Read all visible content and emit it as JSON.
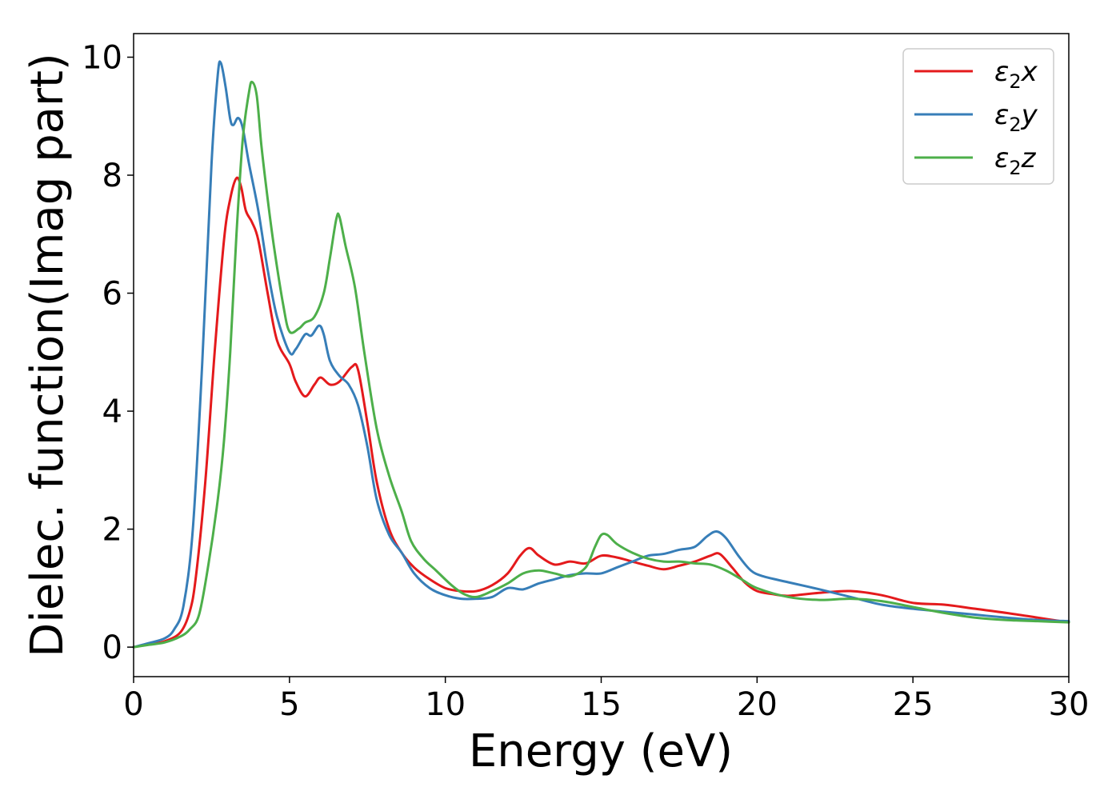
{
  "chart_data": {
    "type": "line",
    "title": "",
    "xlabel": "Energy (eV)",
    "ylabel": "Dielec. function(Imag part)",
    "xlim": [
      0,
      30
    ],
    "ylim": [
      -0.5,
      10.4
    ],
    "xticks": [
      0,
      5,
      10,
      15,
      20,
      25,
      30
    ],
    "yticks": [
      0,
      2,
      4,
      6,
      8,
      10
    ],
    "xtick_labels": [
      "0",
      "5",
      "10",
      "15",
      "20",
      "25",
      "30"
    ],
    "ytick_labels": [
      "0",
      "2",
      "4",
      "6",
      "8",
      "10"
    ],
    "grid": false,
    "legend_position": "top-right",
    "series": [
      {
        "name": "ε₂x",
        "legend": {
          "symbol": "ε",
          "sub": "2",
          "suffix": "x"
        },
        "color": "#e41a1c",
        "points": [
          [
            0,
            0
          ],
          [
            0.5,
            0.05
          ],
          [
            1.0,
            0.1
          ],
          [
            1.5,
            0.25
          ],
          [
            1.8,
            0.6
          ],
          [
            2.0,
            1.2
          ],
          [
            2.3,
            2.8
          ],
          [
            2.6,
            5.0
          ],
          [
            2.9,
            6.9
          ],
          [
            3.1,
            7.6
          ],
          [
            3.3,
            7.95
          ],
          [
            3.45,
            7.8
          ],
          [
            3.6,
            7.4
          ],
          [
            3.8,
            7.2
          ],
          [
            4.0,
            6.9
          ],
          [
            4.3,
            6.0
          ],
          [
            4.6,
            5.2
          ],
          [
            5.0,
            4.8
          ],
          [
            5.2,
            4.5
          ],
          [
            5.5,
            4.25
          ],
          [
            5.8,
            4.45
          ],
          [
            6.0,
            4.57
          ],
          [
            6.3,
            4.45
          ],
          [
            6.6,
            4.5
          ],
          [
            7.0,
            4.75
          ],
          [
            7.2,
            4.7
          ],
          [
            7.5,
            3.8
          ],
          [
            7.8,
            2.8
          ],
          [
            8.2,
            2.0
          ],
          [
            8.6,
            1.6
          ],
          [
            9.0,
            1.35
          ],
          [
            9.5,
            1.15
          ],
          [
            10.0,
            1.0
          ],
          [
            10.5,
            0.95
          ],
          [
            11.0,
            0.95
          ],
          [
            11.5,
            1.05
          ],
          [
            12.0,
            1.25
          ],
          [
            12.4,
            1.55
          ],
          [
            12.7,
            1.68
          ],
          [
            13.0,
            1.55
          ],
          [
            13.5,
            1.4
          ],
          [
            14.0,
            1.45
          ],
          [
            14.5,
            1.42
          ],
          [
            15.0,
            1.55
          ],
          [
            15.5,
            1.52
          ],
          [
            16.0,
            1.45
          ],
          [
            16.5,
            1.38
          ],
          [
            17.0,
            1.32
          ],
          [
            17.5,
            1.38
          ],
          [
            18.0,
            1.45
          ],
          [
            18.5,
            1.55
          ],
          [
            18.8,
            1.58
          ],
          [
            19.2,
            1.35
          ],
          [
            19.6,
            1.1
          ],
          [
            20.0,
            0.95
          ],
          [
            20.5,
            0.9
          ],
          [
            21.0,
            0.87
          ],
          [
            22.0,
            0.92
          ],
          [
            23.0,
            0.95
          ],
          [
            24.0,
            0.88
          ],
          [
            25.0,
            0.75
          ],
          [
            26.0,
            0.72
          ],
          [
            27.0,
            0.65
          ],
          [
            28.0,
            0.58
          ],
          [
            29.0,
            0.5
          ],
          [
            30.0,
            0.42
          ]
        ]
      },
      {
        "name": "ε₂y",
        "legend": {
          "symbol": "ε",
          "sub": "2",
          "suffix": "y"
        },
        "color": "#377eb8",
        "points": [
          [
            0,
            0
          ],
          [
            0.5,
            0.07
          ],
          [
            1.0,
            0.15
          ],
          [
            1.3,
            0.3
          ],
          [
            1.6,
            0.7
          ],
          [
            1.9,
            2.0
          ],
          [
            2.2,
            4.8
          ],
          [
            2.5,
            8.2
          ],
          [
            2.7,
            9.7
          ],
          [
            2.8,
            9.9
          ],
          [
            2.95,
            9.5
          ],
          [
            3.1,
            8.95
          ],
          [
            3.2,
            8.85
          ],
          [
            3.35,
            8.97
          ],
          [
            3.5,
            8.8
          ],
          [
            3.7,
            8.2
          ],
          [
            4.0,
            7.4
          ],
          [
            4.3,
            6.4
          ],
          [
            4.6,
            5.6
          ],
          [
            5.0,
            5.0
          ],
          [
            5.2,
            5.05
          ],
          [
            5.5,
            5.3
          ],
          [
            5.7,
            5.28
          ],
          [
            5.95,
            5.45
          ],
          [
            6.1,
            5.3
          ],
          [
            6.3,
            4.85
          ],
          [
            6.6,
            4.6
          ],
          [
            6.9,
            4.45
          ],
          [
            7.2,
            4.1
          ],
          [
            7.5,
            3.4
          ],
          [
            7.8,
            2.5
          ],
          [
            8.2,
            1.9
          ],
          [
            8.6,
            1.6
          ],
          [
            9.0,
            1.25
          ],
          [
            9.5,
            1.0
          ],
          [
            10.0,
            0.88
          ],
          [
            10.5,
            0.82
          ],
          [
            11.0,
            0.82
          ],
          [
            11.5,
            0.85
          ],
          [
            12.0,
            1.0
          ],
          [
            12.5,
            0.98
          ],
          [
            13.0,
            1.08
          ],
          [
            13.5,
            1.15
          ],
          [
            14.0,
            1.22
          ],
          [
            14.5,
            1.25
          ],
          [
            15.0,
            1.25
          ],
          [
            15.5,
            1.35
          ],
          [
            16.0,
            1.45
          ],
          [
            16.5,
            1.55
          ],
          [
            17.0,
            1.58
          ],
          [
            17.5,
            1.65
          ],
          [
            18.0,
            1.7
          ],
          [
            18.4,
            1.88
          ],
          [
            18.7,
            1.96
          ],
          [
            19.0,
            1.85
          ],
          [
            19.4,
            1.55
          ],
          [
            19.8,
            1.3
          ],
          [
            20.2,
            1.2
          ],
          [
            21.0,
            1.1
          ],
          [
            22.0,
            0.98
          ],
          [
            23.0,
            0.85
          ],
          [
            24.0,
            0.72
          ],
          [
            25.0,
            0.65
          ],
          [
            26.0,
            0.6
          ],
          [
            27.0,
            0.55
          ],
          [
            28.0,
            0.5
          ],
          [
            29.0,
            0.46
          ],
          [
            30.0,
            0.44
          ]
        ]
      },
      {
        "name": "ε₂z",
        "legend": {
          "symbol": "ε",
          "sub": "2",
          "suffix": "z"
        },
        "color": "#4daf4a",
        "points": [
          [
            0,
            0
          ],
          [
            0.5,
            0.04
          ],
          [
            1.0,
            0.08
          ],
          [
            1.5,
            0.18
          ],
          [
            1.8,
            0.3
          ],
          [
            2.1,
            0.55
          ],
          [
            2.4,
            1.4
          ],
          [
            2.7,
            2.5
          ],
          [
            2.9,
            3.5
          ],
          [
            3.1,
            5.0
          ],
          [
            3.3,
            7.0
          ],
          [
            3.5,
            8.6
          ],
          [
            3.7,
            9.4
          ],
          [
            3.8,
            9.58
          ],
          [
            3.95,
            9.35
          ],
          [
            4.1,
            8.5
          ],
          [
            4.3,
            7.6
          ],
          [
            4.5,
            6.8
          ],
          [
            4.8,
            5.8
          ],
          [
            5.0,
            5.35
          ],
          [
            5.3,
            5.4
          ],
          [
            5.5,
            5.5
          ],
          [
            5.8,
            5.6
          ],
          [
            6.1,
            6.0
          ],
          [
            6.3,
            6.6
          ],
          [
            6.5,
            7.25
          ],
          [
            6.6,
            7.3
          ],
          [
            6.8,
            6.8
          ],
          [
            7.1,
            6.1
          ],
          [
            7.4,
            5.0
          ],
          [
            7.8,
            3.7
          ],
          [
            8.2,
            2.9
          ],
          [
            8.6,
            2.3
          ],
          [
            8.9,
            1.8
          ],
          [
            9.3,
            1.5
          ],
          [
            9.7,
            1.3
          ],
          [
            10.2,
            1.05
          ],
          [
            10.6,
            0.9
          ],
          [
            11.0,
            0.85
          ],
          [
            11.5,
            0.95
          ],
          [
            12.0,
            1.08
          ],
          [
            12.5,
            1.25
          ],
          [
            13.0,
            1.3
          ],
          [
            13.5,
            1.25
          ],
          [
            14.0,
            1.2
          ],
          [
            14.5,
            1.35
          ],
          [
            14.8,
            1.7
          ],
          [
            15.0,
            1.9
          ],
          [
            15.2,
            1.9
          ],
          [
            15.5,
            1.75
          ],
          [
            16.0,
            1.6
          ],
          [
            16.5,
            1.5
          ],
          [
            17.0,
            1.45
          ],
          [
            17.5,
            1.45
          ],
          [
            18.0,
            1.42
          ],
          [
            18.5,
            1.4
          ],
          [
            19.0,
            1.3
          ],
          [
            19.5,
            1.15
          ],
          [
            20.0,
            1.0
          ],
          [
            21.0,
            0.85
          ],
          [
            22.0,
            0.8
          ],
          [
            23.0,
            0.82
          ],
          [
            24.0,
            0.78
          ],
          [
            25.0,
            0.68
          ],
          [
            26.0,
            0.58
          ],
          [
            27.0,
            0.5
          ],
          [
            28.0,
            0.46
          ],
          [
            29.0,
            0.44
          ],
          [
            30.0,
            0.42
          ]
        ]
      }
    ]
  }
}
